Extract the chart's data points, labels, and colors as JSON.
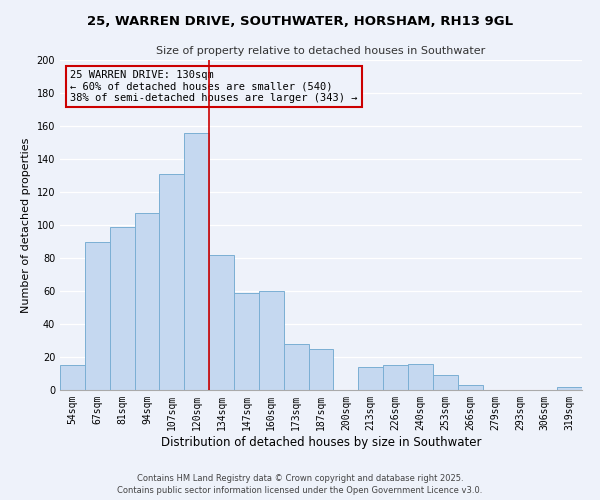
{
  "title": "25, WARREN DRIVE, SOUTHWATER, HORSHAM, RH13 9GL",
  "subtitle": "Size of property relative to detached houses in Southwater",
  "xlabel": "Distribution of detached houses by size in Southwater",
  "ylabel": "Number of detached properties",
  "categories": [
    "54sqm",
    "67sqm",
    "81sqm",
    "94sqm",
    "107sqm",
    "120sqm",
    "134sqm",
    "147sqm",
    "160sqm",
    "173sqm",
    "187sqm",
    "200sqm",
    "213sqm",
    "226sqm",
    "240sqm",
    "253sqm",
    "266sqm",
    "279sqm",
    "293sqm",
    "306sqm",
    "319sqm"
  ],
  "values": [
    15,
    90,
    99,
    107,
    131,
    156,
    82,
    59,
    60,
    28,
    25,
    0,
    14,
    15,
    16,
    9,
    3,
    0,
    0,
    0,
    2
  ],
  "bar_color": "#c5d8f0",
  "bar_edge_color": "#7bafd4",
  "background_color": "#eef2fa",
  "grid_color": "#ffffff",
  "annotation_text": "25 WARREN DRIVE: 130sqm\n← 60% of detached houses are smaller (540)\n38% of semi-detached houses are larger (343) →",
  "vline_x": 5.5,
  "vline_color": "#cc0000",
  "annotation_box_edge": "#cc0000",
  "ylim": [
    0,
    200
  ],
  "yticks": [
    0,
    20,
    40,
    60,
    80,
    100,
    120,
    140,
    160,
    180,
    200
  ],
  "footer1": "Contains HM Land Registry data © Crown copyright and database right 2025.",
  "footer2": "Contains public sector information licensed under the Open Government Licence v3.0.",
  "title_fontsize": 9.5,
  "subtitle_fontsize": 8,
  "xlabel_fontsize": 8.5,
  "ylabel_fontsize": 8,
  "tick_fontsize": 7,
  "annotation_fontsize": 7.5,
  "footer_fontsize": 6
}
